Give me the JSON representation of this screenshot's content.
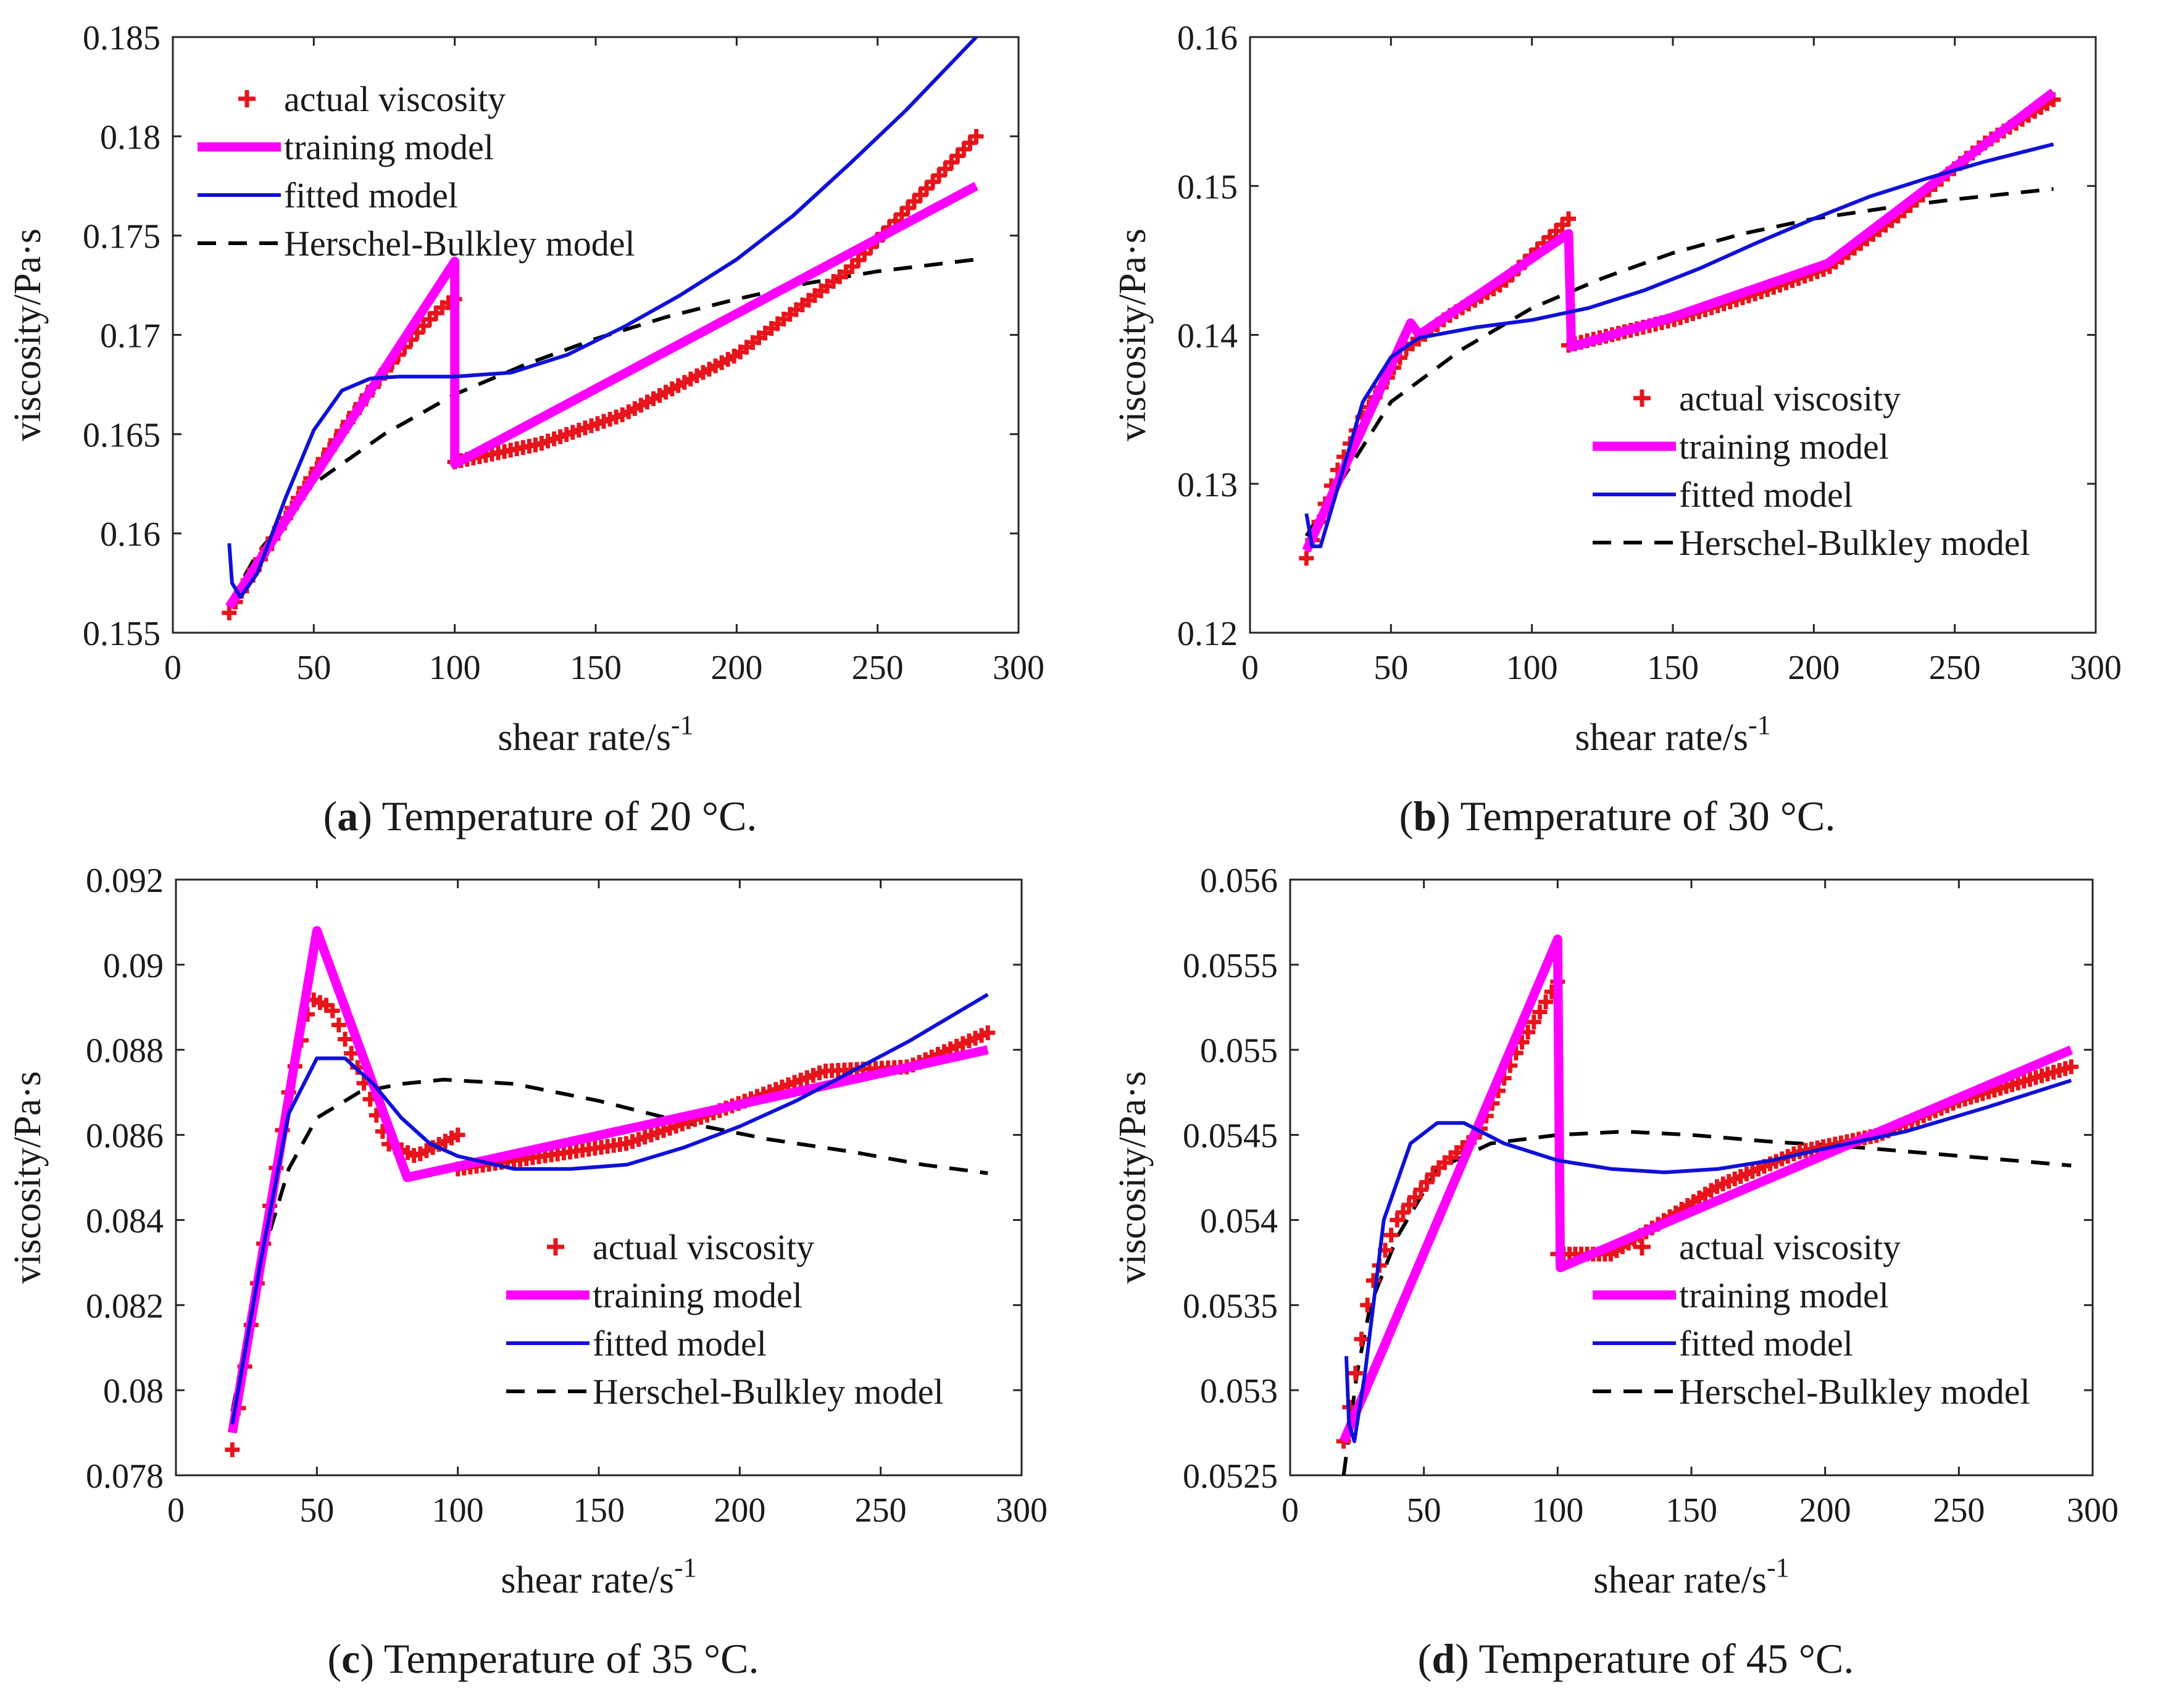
{
  "colors": {
    "actual": "#e8141c",
    "training": "#ff00ff",
    "fitted": "#1010d8",
    "hb": "#000000",
    "axis": "#262626"
  },
  "legend_labels": [
    "actual viscosity",
    "training model",
    "fitted model",
    "Herschel-Bulkley model"
  ],
  "chart_data": [
    {
      "id": "a",
      "type": "line",
      "caption_letter": "a",
      "caption_text": "Temperature of 20 °C.",
      "xlabel": "shear rate/s",
      "xlabel_sup": "-1",
      "ylabel": "viscosity/Pa·s",
      "xlim": [
        0,
        300
      ],
      "ylim": [
        0.155,
        0.185
      ],
      "xticks": [
        0,
        50,
        100,
        150,
        200,
        250,
        300
      ],
      "yticks": [
        0.155,
        0.16,
        0.165,
        0.17,
        0.175,
        0.18,
        0.185
      ],
      "ytick_labels": [
        "0.155",
        "0.16",
        "0.165",
        "0.17",
        "0.175",
        "0.18",
        "0.185"
      ],
      "legend_position": "top-left",
      "series": [
        {
          "name": "actual viscosity",
          "style": "marker",
          "segments": [
            {
              "x": [
                20,
                100
              ],
              "y": [
                0.156,
                0.1718
              ],
              "shape": "convex"
            },
            {
              "x": [
                100,
                130,
                160,
                200,
                240,
                285
              ],
              "y": [
                0.1636,
                0.1645,
                0.166,
                0.169,
                0.1733,
                0.18
              ]
            }
          ]
        },
        {
          "name": "training model",
          "style": "thick",
          "points": [
            [
              20,
              0.1563
            ],
            [
              100,
              0.1737
            ],
            [
              100,
              0.1635
            ],
            [
              285,
              0.1775
            ]
          ]
        },
        {
          "name": "fitted model",
          "style": "solid",
          "points": [
            [
              20,
              0.1595
            ],
            [
              21,
              0.1575
            ],
            [
              24,
              0.1568
            ],
            [
              30,
              0.158
            ],
            [
              40,
              0.1618
            ],
            [
              50,
              0.1652
            ],
            [
              60,
              0.1672
            ],
            [
              70,
              0.1678
            ],
            [
              80,
              0.1679
            ],
            [
              100,
              0.1679
            ],
            [
              120,
              0.1681
            ],
            [
              140,
              0.169
            ],
            [
              160,
              0.1704
            ],
            [
              180,
              0.172
            ],
            [
              200,
              0.1738
            ],
            [
              220,
              0.176
            ],
            [
              240,
              0.1786
            ],
            [
              260,
              0.1813
            ],
            [
              285,
              0.185
            ]
          ]
        },
        {
          "name": "Herschel-Bulkley model",
          "style": "dashed",
          "points": [
            [
              20,
              0.1565
            ],
            [
              30,
              0.159
            ],
            [
              50,
              0.1625
            ],
            [
              75,
              0.165
            ],
            [
              100,
              0.167
            ],
            [
              125,
              0.1685
            ],
            [
              150,
              0.1698
            ],
            [
              175,
              0.1709
            ],
            [
              200,
              0.1718
            ],
            [
              225,
              0.1726
            ],
            [
              250,
              0.1732
            ],
            [
              285,
              0.1738
            ]
          ]
        }
      ]
    },
    {
      "id": "b",
      "type": "line",
      "caption_letter": "b",
      "caption_text": "Temperature of 30 °C.",
      "xlabel": "shear rate/s",
      "xlabel_sup": "-1",
      "ylabel": "viscosity/Pa·s",
      "xlim": [
        0,
        300
      ],
      "ylim": [
        0.12,
        0.16
      ],
      "xticks": [
        0,
        50,
        100,
        150,
        200,
        250,
        300
      ],
      "yticks": [
        0.12,
        0.13,
        0.14,
        0.15,
        0.16
      ],
      "ytick_labels": [
        "0.12",
        "0.13",
        "0.14",
        "0.15",
        "0.16"
      ],
      "legend_position": "center-right",
      "series": [
        {
          "name": "actual viscosity",
          "style": "marker",
          "segments": [
            {
              "x": [
                20,
                30,
                40,
                55,
                70,
                90,
                113
              ],
              "y": [
                0.125,
                0.1305,
                0.1345,
                0.139,
                0.1412,
                0.1435,
                0.1478
              ]
            },
            {
              "x": [
                113,
                150,
                180,
                205,
                230,
                260,
                285
              ],
              "y": [
                0.1393,
                0.141,
                0.1428,
                0.1445,
                0.148,
                0.1528,
                0.1558
              ]
            }
          ]
        },
        {
          "name": "training model",
          "style": "thick",
          "points": [
            [
              20,
              0.1255
            ],
            [
              55,
              0.14
            ],
            [
              57,
              0.1408
            ],
            [
              60,
              0.14
            ],
            [
              113,
              0.1468
            ],
            [
              114,
              0.1392
            ],
            [
              150,
              0.1412
            ],
            [
              205,
              0.1448
            ],
            [
              285,
              0.1563
            ]
          ]
        },
        {
          "name": "fitted model",
          "style": "solid",
          "points": [
            [
              20,
              0.128
            ],
            [
              22,
              0.1258
            ],
            [
              25,
              0.1258
            ],
            [
              30,
              0.129
            ],
            [
              40,
              0.1355
            ],
            [
              50,
              0.1385
            ],
            [
              60,
              0.1398
            ],
            [
              80,
              0.1405
            ],
            [
              100,
              0.141
            ],
            [
              120,
              0.1418
            ],
            [
              140,
              0.143
            ],
            [
              160,
              0.1445
            ],
            [
              180,
              0.1462
            ],
            [
              200,
              0.1478
            ],
            [
              220,
              0.1493
            ],
            [
              240,
              0.1505
            ],
            [
              260,
              0.1516
            ],
            [
              285,
              0.1528
            ]
          ]
        },
        {
          "name": "Herschel-Bulkley model",
          "style": "dashed",
          "points": [
            [
              20,
              0.1265
            ],
            [
              30,
              0.1295
            ],
            [
              50,
              0.1355
            ],
            [
              75,
              0.139
            ],
            [
              100,
              0.1418
            ],
            [
              125,
              0.1438
            ],
            [
              150,
              0.1455
            ],
            [
              175,
              0.1468
            ],
            [
              200,
              0.1478
            ],
            [
              225,
              0.1485
            ],
            [
              250,
              0.1491
            ],
            [
              285,
              0.1498
            ]
          ]
        }
      ]
    },
    {
      "id": "c",
      "type": "line",
      "caption_letter": "c",
      "caption_text": "Temperature of 35 °C.",
      "xlabel": "shear rate/s",
      "xlabel_sup": "-1",
      "ylabel": "viscosity/Pa·s",
      "xlim": [
        0,
        300
      ],
      "ylim": [
        0.078,
        0.092
      ],
      "xticks": [
        0,
        50,
        100,
        150,
        200,
        250,
        300
      ],
      "yticks": [
        0.078,
        0.08,
        0.082,
        0.084,
        0.086,
        0.088,
        0.09,
        0.092
      ],
      "ytick_labels": [
        "0.078",
        "0.08",
        "0.082",
        "0.084",
        "0.086",
        "0.088",
        "0.09",
        "0.092"
      ],
      "legend_position": "bottom-right",
      "series": [
        {
          "name": "actual viscosity",
          "style": "marker",
          "segments": [
            {
              "x": [
                20,
                30,
                40,
                48,
                55,
                65,
                75,
                85,
                100
              ],
              "y": [
                0.0786,
                0.083,
                0.087,
                0.0892,
                0.089,
                0.0875,
                0.0858,
                0.0855,
                0.086
              ]
            },
            {
              "x": [
                100,
                130,
                160,
                190,
                210,
                230,
                260,
                288
              ],
              "y": [
                0.0852,
                0.0855,
                0.0858,
                0.0865,
                0.087,
                0.0875,
                0.0876,
                0.0884
              ]
            }
          ]
        },
        {
          "name": "training model",
          "style": "thick",
          "points": [
            [
              20,
              0.079
            ],
            [
              50,
              0.0908
            ],
            [
              82,
              0.085
            ],
            [
              288,
              0.088
            ]
          ]
        },
        {
          "name": "fitted model",
          "style": "solid",
          "points": [
            [
              20,
              0.0792
            ],
            [
              30,
              0.083
            ],
            [
              40,
              0.0865
            ],
            [
              50,
              0.0878
            ],
            [
              60,
              0.0878
            ],
            [
              70,
              0.0872
            ],
            [
              80,
              0.0864
            ],
            [
              90,
              0.0858
            ],
            [
              100,
              0.0855
            ],
            [
              120,
              0.0852
            ],
            [
              140,
              0.0852
            ],
            [
              160,
              0.0853
            ],
            [
              180,
              0.0857
            ],
            [
              200,
              0.0862
            ],
            [
              220,
              0.0868
            ],
            [
              240,
              0.0875
            ],
            [
              260,
              0.0882
            ],
            [
              288,
              0.0893
            ]
          ]
        },
        {
          "name": "Herschel-Bulkley model",
          "style": "dashed",
          "points": [
            [
              20,
              0.0795
            ],
            [
              30,
              0.083
            ],
            [
              40,
              0.0852
            ],
            [
              50,
              0.0864
            ],
            [
              65,
              0.087
            ],
            [
              80,
              0.0872
            ],
            [
              95,
              0.0873
            ],
            [
              120,
              0.0872
            ],
            [
              150,
              0.0868
            ],
            [
              180,
              0.0863
            ],
            [
              210,
              0.0859
            ],
            [
              240,
              0.0856
            ],
            [
              265,
              0.0853
            ],
            [
              288,
              0.0851
            ]
          ]
        }
      ]
    },
    {
      "id": "d",
      "type": "line",
      "caption_letter": "d",
      "caption_text": "Temperature of 45 °C.",
      "xlabel": "shear rate/s",
      "xlabel_sup": "-1",
      "ylabel": "viscosity/Pa·s",
      "xlim": [
        0,
        300
      ],
      "ylim": [
        0.0525,
        0.056
      ],
      "xticks": [
        0,
        50,
        100,
        150,
        200,
        250,
        300
      ],
      "yticks": [
        0.0525,
        0.053,
        0.0535,
        0.054,
        0.0545,
        0.055,
        0.0555,
        0.056
      ],
      "ytick_labels": [
        "0.0525",
        "0.053",
        "0.0535",
        "0.054",
        "0.0545",
        "0.055",
        "0.0555",
        "0.056"
      ],
      "legend_position": "bottom-right",
      "series": [
        {
          "name": "actual viscosity",
          "style": "marker",
          "segments": [
            {
              "x": [
                20,
                30,
                40,
                55,
                70,
                85,
                100
              ],
              "y": [
                0.0527,
                0.0536,
                0.054,
                0.0543,
                0.0545,
                0.055,
                0.0554
              ]
            },
            {
              "x": [
                100,
                120,
                140,
                160,
                190,
                220,
                250,
                292
              ],
              "y": [
                0.0538,
                0.0538,
                0.054,
                0.0542,
                0.0544,
                0.0545,
                0.0547,
                0.0549
              ]
            }
          ]
        },
        {
          "name": "training model",
          "style": "thick",
          "points": [
            [
              20,
              0.0527
            ],
            [
              100,
              0.05565
            ],
            [
              101,
              0.05372
            ],
            [
              292,
              0.055
            ]
          ]
        },
        {
          "name": "fitted model",
          "style": "solid",
          "points": [
            [
              21,
              0.0532
            ],
            [
              22,
              0.0528
            ],
            [
              24,
              0.0527
            ],
            [
              28,
              0.0531
            ],
            [
              35,
              0.054
            ],
            [
              45,
              0.05445
            ],
            [
              55,
              0.05457
            ],
            [
              65,
              0.05457
            ],
            [
              80,
              0.05445
            ],
            [
              100,
              0.05435
            ],
            [
              120,
              0.0543
            ],
            [
              140,
              0.05428
            ],
            [
              160,
              0.0543
            ],
            [
              180,
              0.05435
            ],
            [
              200,
              0.05442
            ],
            [
              230,
              0.05452
            ],
            [
              260,
              0.05466
            ],
            [
              292,
              0.05482
            ]
          ]
        },
        {
          "name": "Herschel-Bulkley model",
          "style": "dashed",
          "points": [
            [
              20,
              0.0525
            ],
            [
              25,
              0.0531
            ],
            [
              30,
              0.0535
            ],
            [
              40,
              0.0539
            ],
            [
              55,
              0.0543
            ],
            [
              75,
              0.05445
            ],
            [
              100,
              0.0545
            ],
            [
              125,
              0.05452
            ],
            [
              150,
              0.0545
            ],
            [
              180,
              0.05446
            ],
            [
              210,
              0.05443
            ],
            [
              240,
              0.05439
            ],
            [
              270,
              0.05435
            ],
            [
              292,
              0.05432
            ]
          ]
        }
      ]
    }
  ]
}
